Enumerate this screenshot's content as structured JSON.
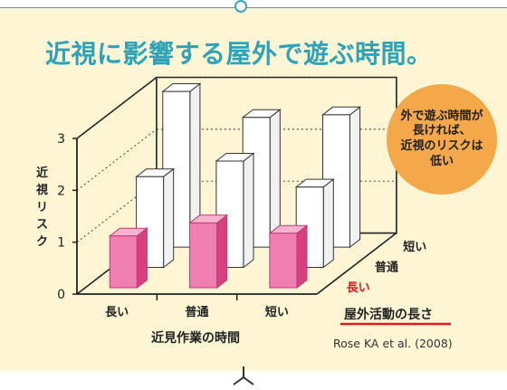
{
  "title": "近視に影響する屋外で遊ぶ時間。",
  "callout": "外で遊ぶ時間が\n長ければ、\n近視のリスクは\n低い",
  "citation": "Rose KA et al. (2008)",
  "colors": {
    "accent": "#2ea3b8",
    "highlight_bar": "#ee7fb0",
    "other_bar": "#ffffff",
    "badge": "#f5a84a",
    "emphasis_label": "#e0191f",
    "background": "#fdf5d3"
  },
  "chart_data": {
    "type": "bar",
    "title": "",
    "ylabel": "近視リスク",
    "xlabel": "近見作業の時間",
    "zlabel": "屋外活動の長さ",
    "ylim": [
      0,
      3
    ],
    "yticks": [
      "0",
      "1",
      "2",
      "3"
    ],
    "categories": [
      "長い",
      "普通",
      "短い"
    ],
    "series": [
      {
        "name": "長い",
        "values": [
          1.0,
          1.25,
          1.05
        ]
      },
      {
        "name": "普通",
        "values": [
          1.75,
          2.05,
          1.55
        ]
      },
      {
        "name": "短い",
        "values": [
          3.0,
          2.5,
          2.55
        ]
      }
    ],
    "highlight_series": "長い"
  }
}
